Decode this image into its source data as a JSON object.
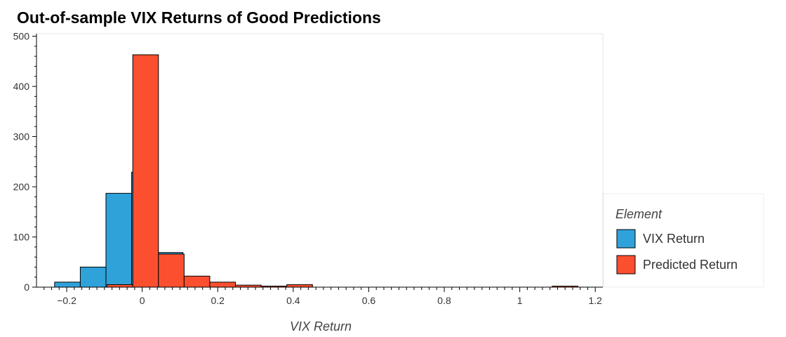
{
  "chart_data": {
    "type": "bar",
    "title": "Out-of-sample VIX Returns of Good Predictions",
    "xlabel": "VIX Return",
    "ylabel": "",
    "xlim": [
      -0.28,
      1.22
    ],
    "ylim": [
      0,
      505
    ],
    "x_ticks": [
      -0.2,
      0,
      0.2,
      0.4,
      0.6,
      0.8,
      1,
      1.2
    ],
    "x_tick_labels": [
      "−0.2",
      "0",
      "0.2",
      "0.4",
      "0.6",
      "0.8",
      "1",
      "1.2"
    ],
    "y_ticks": [
      0,
      100,
      200,
      300,
      400,
      500
    ],
    "y_tick_labels": [
      "0",
      "100",
      "200",
      "300",
      "400",
      "500"
    ],
    "grid": false,
    "legend": {
      "title": "Element",
      "placement": "right"
    },
    "series": [
      {
        "name": "VIX Return",
        "color": "#30a2da",
        "bins": [
          {
            "x0": -0.232,
            "x1": -0.164,
            "count": 10
          },
          {
            "x0": -0.164,
            "x1": -0.096,
            "count": 40
          },
          {
            "x0": -0.096,
            "x1": -0.028,
            "count": 187
          },
          {
            "x0": -0.028,
            "x1": 0.04,
            "count": 229
          },
          {
            "x0": 0.04,
            "x1": 0.108,
            "count": 69
          },
          {
            "x0": 0.108,
            "x1": 0.176,
            "count": 20
          },
          {
            "x0": 0.176,
            "x1": 0.244,
            "count": 7
          },
          {
            "x0": 0.244,
            "x1": 0.312,
            "count": 3
          },
          {
            "x0": 0.312,
            "x1": 0.38,
            "count": 2
          },
          {
            "x0": 1.086,
            "x1": 1.154,
            "count": 1
          }
        ]
      },
      {
        "name": "Predicted Return",
        "color": "#fc4f30",
        "bins": [
          {
            "x0": -0.093,
            "x1": -0.025,
            "count": 5
          },
          {
            "x0": -0.025,
            "x1": 0.043,
            "count": 463
          },
          {
            "x0": 0.043,
            "x1": 0.111,
            "count": 66
          },
          {
            "x0": 0.111,
            "x1": 0.179,
            "count": 22
          },
          {
            "x0": 0.179,
            "x1": 0.247,
            "count": 10
          },
          {
            "x0": 0.247,
            "x1": 0.315,
            "count": 4
          },
          {
            "x0": 0.315,
            "x1": 0.383,
            "count": 2
          },
          {
            "x0": 0.383,
            "x1": 0.451,
            "count": 5
          },
          {
            "x0": 1.086,
            "x1": 1.154,
            "count": 2
          }
        ]
      }
    ]
  }
}
